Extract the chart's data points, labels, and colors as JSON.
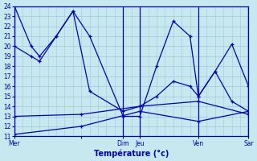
{
  "background_color": "#c8e8f0",
  "grid_color": "#9ec8d8",
  "line_color": "#0000bb",
  "xlabel": "Température (°c)",
  "ylim": [
    11,
    24
  ],
  "yticks": [
    11,
    12,
    13,
    14,
    15,
    16,
    17,
    18,
    19,
    20,
    21,
    22,
    23,
    24
  ],
  "xlim": [
    0,
    28
  ],
  "xtick_positions": [
    0,
    8,
    13,
    15,
    22,
    28
  ],
  "xtick_labels": [
    "Mer",
    "",
    "Dim",
    "Jeu",
    "Ven",
    "Sar"
  ],
  "x_vlines": [
    0,
    13,
    15,
    22,
    28
  ],
  "series": [
    {
      "x": [
        0,
        2,
        3,
        5,
        7,
        9,
        13,
        15,
        17,
        19,
        21,
        22,
        24,
        26,
        28
      ],
      "y": [
        24,
        20,
        19.0,
        21.0,
        23.5,
        21.0,
        13.0,
        13.0,
        18.0,
        22.5,
        21.0,
        15.0,
        17.5,
        20.2,
        16.0
      ]
    },
    {
      "x": [
        0,
        2,
        3,
        5,
        7,
        9,
        13,
        15,
        17,
        19,
        21,
        22,
        24,
        26,
        28
      ],
      "y": [
        20.0,
        19.0,
        18.5,
        21.0,
        23.5,
        15.5,
        13.5,
        14.0,
        15.0,
        16.5,
        16.0,
        15.0,
        17.5,
        14.5,
        13.5
      ]
    },
    {
      "x": [
        0,
        8,
        15,
        22,
        28
      ],
      "y": [
        13.0,
        13.2,
        14.0,
        14.5,
        13.2
      ]
    },
    {
      "x": [
        0,
        8,
        15,
        22,
        28
      ],
      "y": [
        11.2,
        12.0,
        13.5,
        12.5,
        13.5
      ]
    }
  ]
}
